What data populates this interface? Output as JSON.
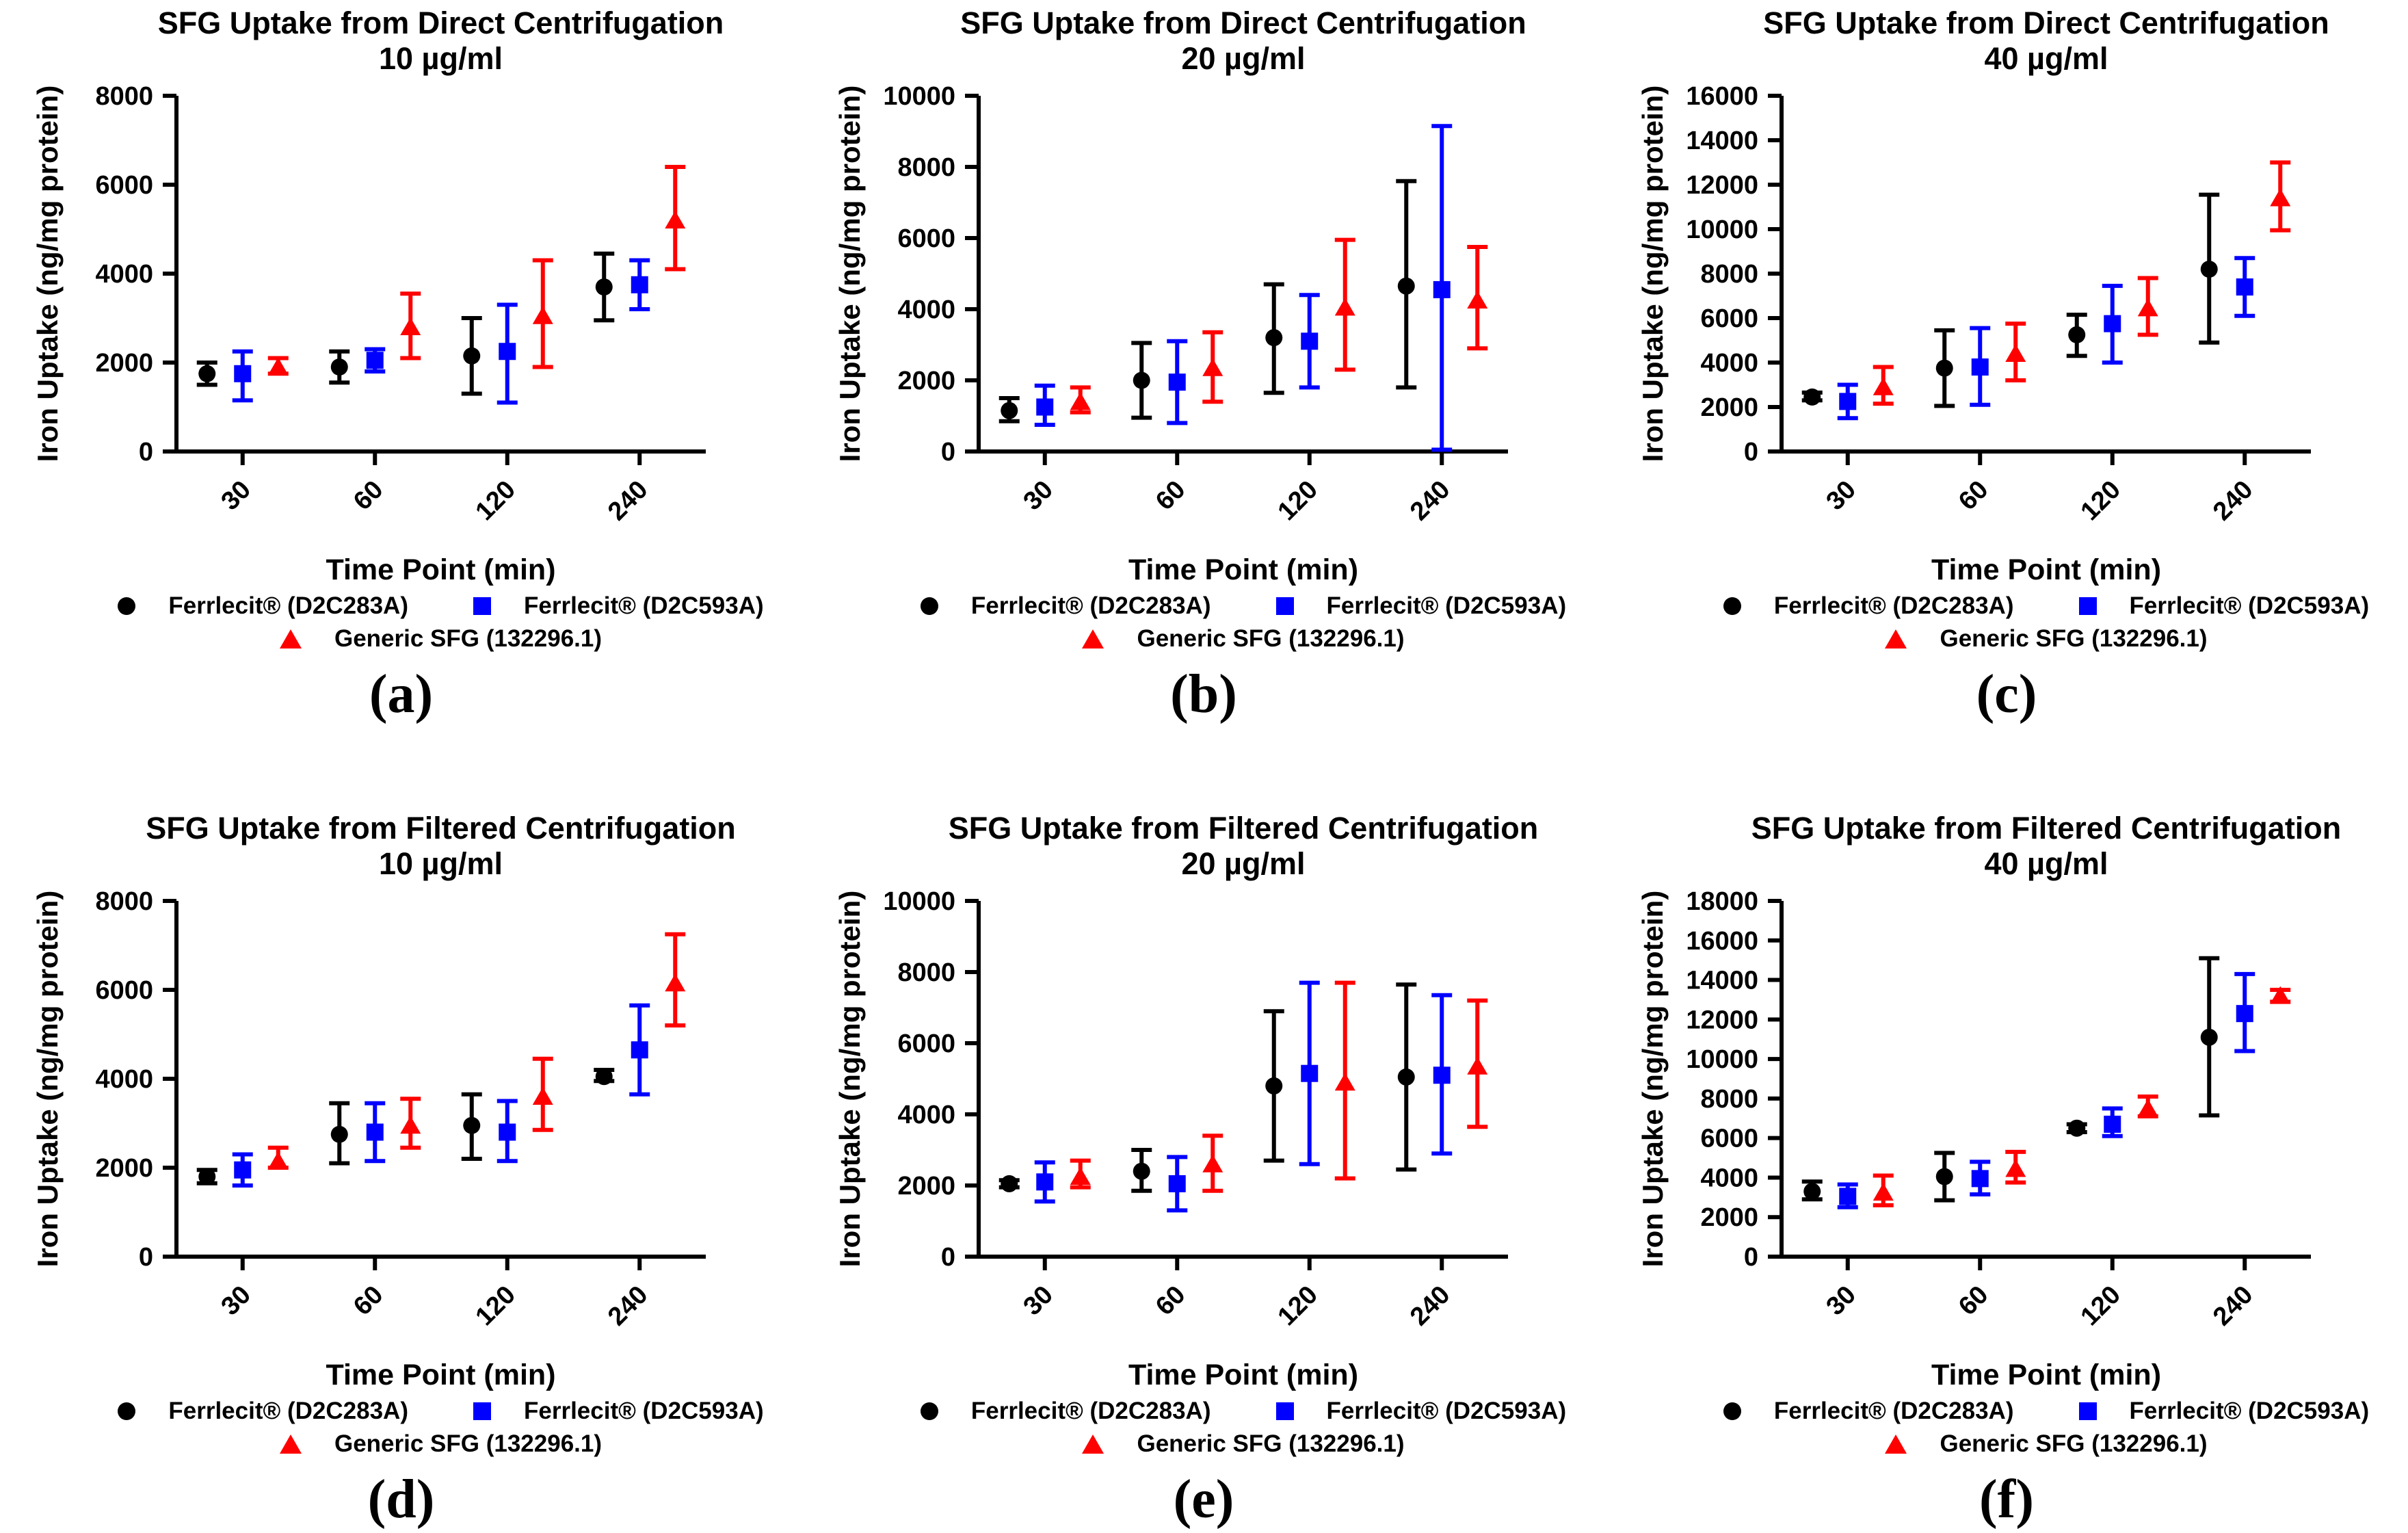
{
  "page": {
    "background": "#ffffff"
  },
  "legend": {
    "items": [
      {
        "label": "Ferrlecit® (D2C283A)",
        "marker": "circle",
        "color": "#000000"
      },
      {
        "label": "Ferrlecit® (D2C593A)",
        "marker": "square",
        "color": "#0000ff"
      },
      {
        "label": "Generic SFG (132296.1)",
        "marker": "triangle",
        "color": "#ff0000"
      }
    ]
  },
  "chart_data": [
    {
      "id": "a",
      "letter": "(a)",
      "type": "scatter",
      "title_line1": "SFG Uptake from Direct Centrifugation",
      "title_line2": "10 µg/ml",
      "xlabel": "Time Point (min)",
      "ylabel": "Iron Uptake (ng/mg protein)",
      "categories": [
        "30",
        "60",
        "120",
        "240"
      ],
      "ylim": [
        0,
        8000
      ],
      "ytick_step": 2000,
      "grid": false,
      "legend_position": "bottom",
      "series": [
        {
          "name": "Ferrlecit® (D2C283A)",
          "marker": "circle",
          "color": "#000000",
          "values": [
            1750,
            1900,
            2150,
            3700
          ],
          "err_lo": [
            1500,
            1550,
            1300,
            2950
          ],
          "err_hi": [
            2000,
            2250,
            3000,
            4450
          ]
        },
        {
          "name": "Ferrlecit® (D2C593A)",
          "marker": "square",
          "color": "#0000ff",
          "values": [
            1750,
            2050,
            2250,
            3750
          ],
          "err_lo": [
            1150,
            1800,
            1100,
            3200
          ],
          "err_hi": [
            2250,
            2300,
            3300,
            4300
          ]
        },
        {
          "name": "Generic SFG (132296.1)",
          "marker": "triangle",
          "color": "#ff0000",
          "values": [
            1900,
            2800,
            3050,
            5200
          ],
          "err_lo": [
            1750,
            2100,
            1900,
            4100
          ],
          "err_hi": [
            2100,
            3550,
            4300,
            6400
          ]
        }
      ]
    },
    {
      "id": "b",
      "letter": "(b)",
      "type": "scatter",
      "title_line1": "SFG Uptake from Direct Centrifugation",
      "title_line2": "20 µg/ml",
      "xlabel": "Time Point (min)",
      "ylabel": "Iron Uptake (ng/mg protein)",
      "categories": [
        "30",
        "60",
        "120",
        "240"
      ],
      "ylim": [
        0,
        10000
      ],
      "ytick_step": 2000,
      "grid": false,
      "legend_position": "bottom",
      "series": [
        {
          "name": "Ferrlecit® (D2C283A)",
          "marker": "circle",
          "color": "#000000",
          "values": [
            1150,
            2000,
            3200,
            4650
          ],
          "err_lo": [
            850,
            950,
            1650,
            1800
          ],
          "err_hi": [
            1500,
            3050,
            4700,
            7600
          ]
        },
        {
          "name": "Ferrlecit® (D2C593A)",
          "marker": "square",
          "color": "#0000ff",
          "values": [
            1250,
            1950,
            3100,
            4550
          ],
          "err_lo": [
            750,
            800,
            1800,
            50
          ],
          "err_hi": [
            1850,
            3100,
            4400,
            9150
          ]
        },
        {
          "name": "Generic SFG (132296.1)",
          "marker": "triangle",
          "color": "#ff0000",
          "values": [
            1400,
            2350,
            4050,
            4250
          ],
          "err_lo": [
            1100,
            1400,
            2300,
            2900
          ],
          "err_hi": [
            1800,
            3350,
            5950,
            5750
          ]
        }
      ]
    },
    {
      "id": "c",
      "letter": "(c)",
      "type": "scatter",
      "title_line1": "SFG Uptake from Direct Centrifugation",
      "title_line2": "40 µg/ml",
      "xlabel": "Time Point (min)",
      "ylabel": "Iron Uptake (ng/mg protein)",
      "categories": [
        "30",
        "60",
        "120",
        "240"
      ],
      "ylim": [
        0,
        16000
      ],
      "ytick_step": 2000,
      "grid": false,
      "legend_position": "bottom",
      "series": [
        {
          "name": "Ferrlecit® (D2C283A)",
          "marker": "circle",
          "color": "#000000",
          "values": [
            2450,
            3750,
            5250,
            8200
          ],
          "err_lo": [
            2300,
            2050,
            4300,
            4900
          ],
          "err_hi": [
            2650,
            5450,
            6150,
            11550
          ]
        },
        {
          "name": "Ferrlecit® (D2C593A)",
          "marker": "square",
          "color": "#0000ff",
          "values": [
            2250,
            3800,
            5750,
            7400
          ],
          "err_lo": [
            1500,
            2100,
            4000,
            6100
          ],
          "err_hi": [
            3000,
            5550,
            7450,
            8700
          ]
        },
        {
          "name": "Generic SFG (132296.1)",
          "marker": "triangle",
          "color": "#ff0000",
          "values": [
            2900,
            4400,
            6450,
            11400
          ],
          "err_lo": [
            2150,
            3200,
            5250,
            9950
          ],
          "err_hi": [
            3800,
            5750,
            7800,
            13000
          ]
        }
      ]
    },
    {
      "id": "d",
      "letter": "(d)",
      "type": "scatter",
      "title_line1": "SFG Uptake from Filtered Centrifugation",
      "title_line2": "10 µg/ml",
      "xlabel": "Time Point (min)",
      "ylabel": "Iron Uptake (ng/mg protein)",
      "categories": [
        "30",
        "60",
        "120",
        "240"
      ],
      "ylim": [
        0,
        8000
      ],
      "ytick_step": 2000,
      "grid": false,
      "legend_position": "bottom",
      "series": [
        {
          "name": "Ferrlecit® (D2C283A)",
          "marker": "circle",
          "color": "#000000",
          "values": [
            1800,
            2750,
            2950,
            4050
          ],
          "err_lo": [
            1650,
            2100,
            2200,
            3950
          ],
          "err_hi": [
            1950,
            3450,
            3650,
            4200
          ]
        },
        {
          "name": "Ferrlecit® (D2C593A)",
          "marker": "square",
          "color": "#0000ff",
          "values": [
            1950,
            2800,
            2800,
            4650
          ],
          "err_lo": [
            1600,
            2150,
            2150,
            3650
          ],
          "err_hi": [
            2300,
            3450,
            3500,
            5650
          ]
        },
        {
          "name": "Generic SFG (132296.1)",
          "marker": "triangle",
          "color": "#ff0000",
          "values": [
            2150,
            2950,
            3600,
            6150
          ],
          "err_lo": [
            2000,
            2450,
            2850,
            5200
          ],
          "err_hi": [
            2450,
            3550,
            4450,
            7250
          ]
        }
      ]
    },
    {
      "id": "e",
      "letter": "(e)",
      "type": "scatter",
      "title_line1": "SFG Uptake from Filtered Centrifugation",
      "title_line2": "20 µg/ml",
      "xlabel": "Time Point (min)",
      "ylabel": "Iron Uptake (ng/mg protein)",
      "categories": [
        "30",
        "60",
        "120",
        "240"
      ],
      "ylim": [
        0,
        10000
      ],
      "ytick_step": 2000,
      "grid": false,
      "legend_position": "bottom",
      "series": [
        {
          "name": "Ferrlecit® (D2C283A)",
          "marker": "circle",
          "color": "#000000",
          "values": [
            2050,
            2400,
            4800,
            5050
          ],
          "err_lo": [
            1950,
            1850,
            2700,
            2450
          ],
          "err_hi": [
            2150,
            3000,
            6900,
            7650
          ]
        },
        {
          "name": "Ferrlecit® (D2C593A)",
          "marker": "square",
          "color": "#0000ff",
          "values": [
            2100,
            2050,
            5150,
            5100
          ],
          "err_lo": [
            1550,
            1300,
            2600,
            2900
          ],
          "err_hi": [
            2650,
            2800,
            7700,
            7350
          ]
        },
        {
          "name": "Generic SFG (132296.1)",
          "marker": "triangle",
          "color": "#ff0000",
          "values": [
            2250,
            2600,
            4900,
            5350
          ],
          "err_lo": [
            1950,
            1850,
            2200,
            3650
          ],
          "err_hi": [
            2700,
            3400,
            7700,
            7200
          ]
        }
      ]
    },
    {
      "id": "f",
      "letter": "(f)",
      "type": "scatter",
      "title_line1": "SFG Uptake from Filtered Centrifugation",
      "title_line2": "40 µg/ml",
      "xlabel": "Time Point (min)",
      "ylabel": "Iron Uptake (ng/mg protein)",
      "categories": [
        "30",
        "60",
        "120",
        "240"
      ],
      "ylim": [
        0,
        18000
      ],
      "ytick_step": 2000,
      "grid": false,
      "legend_position": "bottom",
      "series": [
        {
          "name": "Ferrlecit® (D2C283A)",
          "marker": "circle",
          "color": "#000000",
          "values": [
            3300,
            4050,
            6500,
            11100
          ],
          "err_lo": [
            2900,
            2850,
            6300,
            7150
          ],
          "err_hi": [
            3800,
            5250,
            6700,
            15100
          ]
        },
        {
          "name": "Ferrlecit® (D2C593A)",
          "marker": "square",
          "color": "#0000ff",
          "values": [
            3050,
            3950,
            6700,
            12300
          ],
          "err_lo": [
            2500,
            3150,
            6100,
            10400
          ],
          "err_hi": [
            3650,
            4800,
            7500,
            14300
          ]
        },
        {
          "name": "Generic SFG (132296.1)",
          "marker": "triangle",
          "color": "#ff0000",
          "values": [
            3250,
            4450,
            7500,
            13200
          ],
          "err_lo": [
            2600,
            3750,
            7100,
            12900
          ],
          "err_hi": [
            4100,
            5300,
            8100,
            13500
          ]
        }
      ]
    }
  ]
}
